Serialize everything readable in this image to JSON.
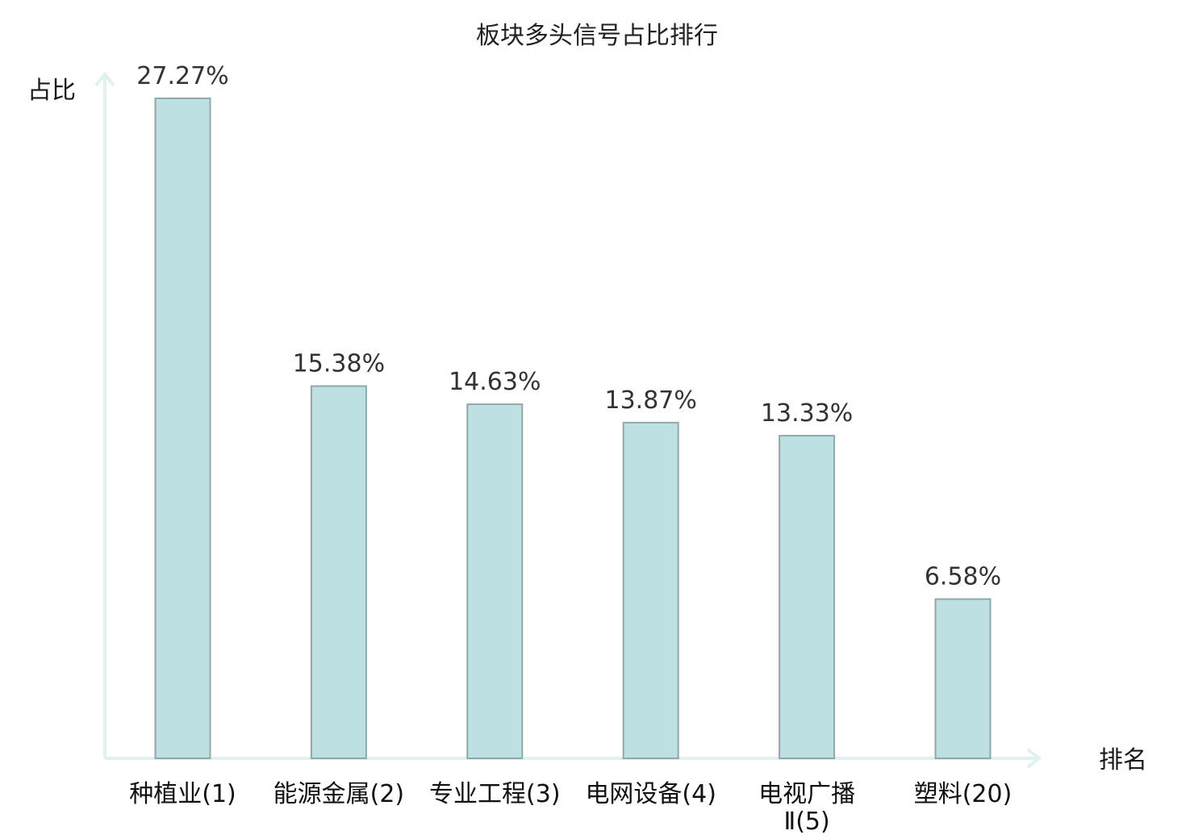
{
  "chart_data": {
    "type": "bar",
    "title": "板块多头信号占比排行",
    "ylabel": "占比",
    "xlabel": "排名",
    "categories": [
      "种植业(1)",
      "能源金属(2)",
      "专业工程(3)",
      "电网设备(4)",
      "电视广播Ⅱ(5)",
      "塑料(20)"
    ],
    "category_lines": [
      [
        "种植业(1)"
      ],
      [
        "能源金属(2)"
      ],
      [
        "专业工程(3)"
      ],
      [
        "电网设备(4)"
      ],
      [
        "电视广播",
        "Ⅱ(5)"
      ],
      [
        "塑料(20)"
      ]
    ],
    "values": [
      27.27,
      15.38,
      14.63,
      13.87,
      13.33,
      6.58
    ],
    "value_labels": [
      "27.27%",
      "15.38%",
      "14.63%",
      "13.87%",
      "13.33%",
      "6.58%"
    ],
    "ylim": [
      0,
      30
    ],
    "grid": false,
    "highlight_index": 5,
    "colors": {
      "bar_fill": "#bde0e3",
      "bar_stroke": "#8fa9aa",
      "axis": "#e0f2ef",
      "highlight_text": "#e00000",
      "normal_text": "#111111"
    }
  }
}
